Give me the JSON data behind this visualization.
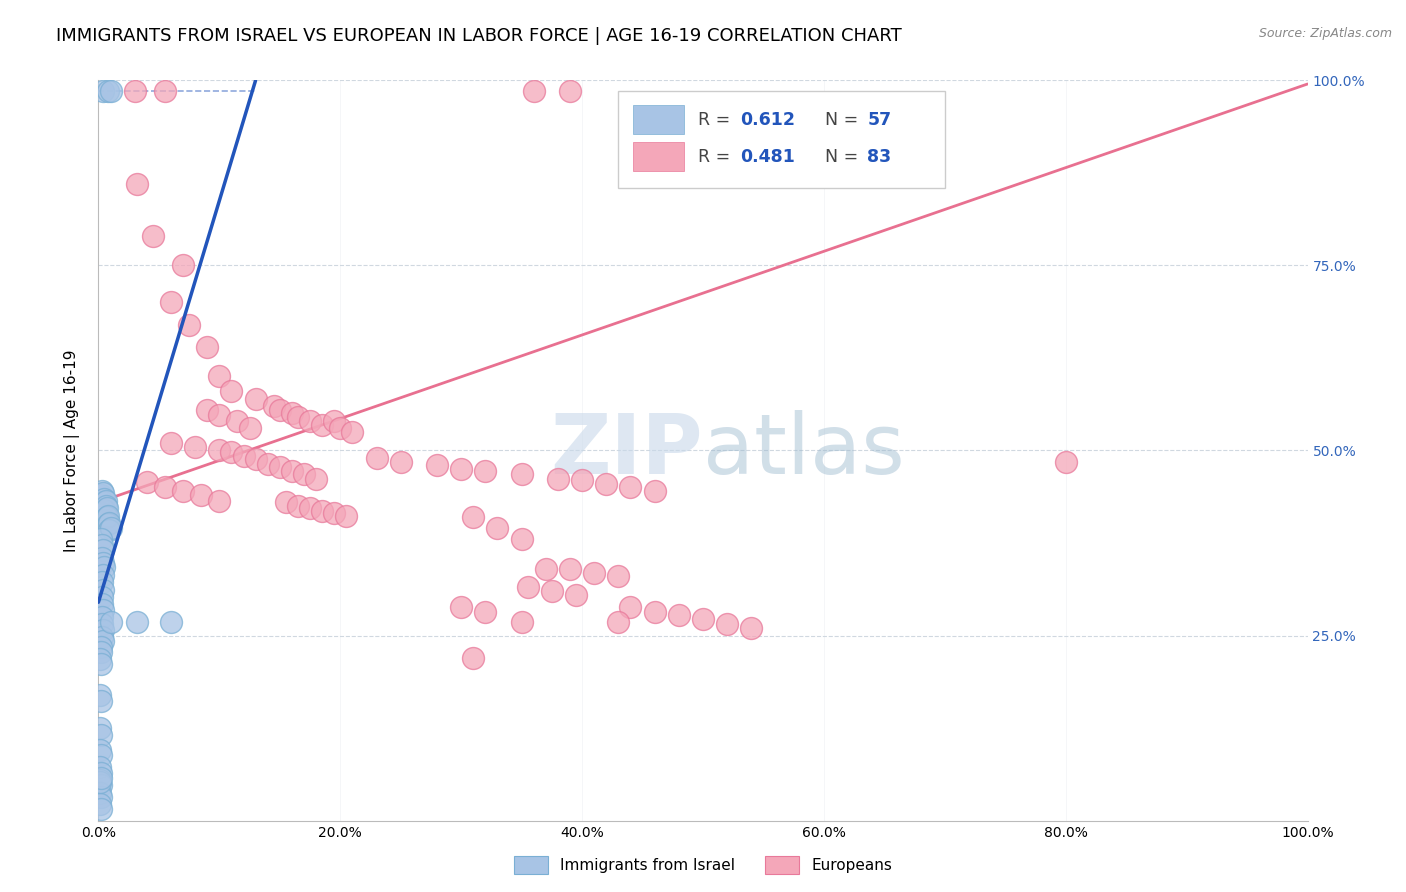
{
  "title": "IMMIGRANTS FROM ISRAEL VS EUROPEAN IN LABOR FORCE | AGE 16-19 CORRELATION CHART",
  "source": "Source: ZipAtlas.com",
  "ylabel": "In Labor Force | Age 16-19",
  "xlim": [
    0.0,
    1.0
  ],
  "ylim": [
    0.0,
    1.0
  ],
  "legend_israel_r": "0.612",
  "legend_israel_n": "57",
  "legend_europe_r": "0.481",
  "legend_europe_n": "83",
  "israel_color": "#a8c4e5",
  "israel_edge_color": "#7aafd4",
  "europe_color": "#f4a7b9",
  "europe_edge_color": "#e8799a",
  "israel_line_color": "#2255bb",
  "europe_line_color": "#e87090",
  "watermark_zip": "ZIP",
  "watermark_atlas": "atlas",
  "watermark_color_zip": "#c5d8ea",
  "watermark_color_atlas": "#9ab8d0",
  "background_color": "#ffffff",
  "grid_color": "#d0d8e0",
  "title_fontsize": 13,
  "label_fontsize": 11,
  "tick_fontsize": 10,
  "israel_scatter": [
    [
      0.004,
      0.985
    ],
    [
      0.008,
      0.986
    ],
    [
      0.01,
      0.985
    ],
    [
      0.002,
      0.44
    ],
    [
      0.003,
      0.445
    ],
    [
      0.004,
      0.442
    ],
    [
      0.004,
      0.43
    ],
    [
      0.005,
      0.435
    ],
    [
      0.006,
      0.432
    ],
    [
      0.005,
      0.42
    ],
    [
      0.006,
      0.425
    ],
    [
      0.007,
      0.422
    ],
    [
      0.007,
      0.41
    ],
    [
      0.008,
      0.412
    ],
    [
      0.008,
      0.4
    ],
    [
      0.009,
      0.402
    ],
    [
      0.009,
      0.392
    ],
    [
      0.01,
      0.395
    ],
    [
      0.002,
      0.38
    ],
    [
      0.003,
      0.372
    ],
    [
      0.004,
      0.365
    ],
    [
      0.003,
      0.355
    ],
    [
      0.004,
      0.348
    ],
    [
      0.005,
      0.342
    ],
    [
      0.004,
      0.332
    ],
    [
      0.003,
      0.322
    ],
    [
      0.004,
      0.312
    ],
    [
      0.003,
      0.302
    ],
    [
      0.003,
      0.292
    ],
    [
      0.004,
      0.285
    ],
    [
      0.003,
      0.275
    ],
    [
      0.003,
      0.265
    ],
    [
      0.004,
      0.258
    ],
    [
      0.003,
      0.248
    ],
    [
      0.004,
      0.242
    ],
    [
      0.002,
      0.235
    ],
    [
      0.002,
      0.228
    ],
    [
      0.001,
      0.218
    ],
    [
      0.002,
      0.212
    ],
    [
      0.001,
      0.17
    ],
    [
      0.002,
      0.162
    ],
    [
      0.001,
      0.125
    ],
    [
      0.002,
      0.115
    ],
    [
      0.001,
      0.095
    ],
    [
      0.002,
      0.088
    ],
    [
      0.001,
      0.072
    ],
    [
      0.002,
      0.065
    ],
    [
      0.001,
      0.055
    ],
    [
      0.002,
      0.048
    ],
    [
      0.001,
      0.038
    ],
    [
      0.002,
      0.032
    ],
    [
      0.001,
      0.022
    ],
    [
      0.002,
      0.016
    ],
    [
      0.001,
      0.052
    ],
    [
      0.002,
      0.058
    ],
    [
      0.01,
      0.268
    ],
    [
      0.032,
      0.268
    ],
    [
      0.06,
      0.268
    ]
  ],
  "europe_scatter": [
    [
      0.03,
      0.985
    ],
    [
      0.055,
      0.985
    ],
    [
      0.36,
      0.985
    ],
    [
      0.39,
      0.985
    ],
    [
      0.032,
      0.86
    ],
    [
      0.045,
      0.79
    ],
    [
      0.07,
      0.75
    ],
    [
      0.06,
      0.7
    ],
    [
      0.075,
      0.67
    ],
    [
      0.09,
      0.64
    ],
    [
      0.1,
      0.6
    ],
    [
      0.11,
      0.58
    ],
    [
      0.09,
      0.555
    ],
    [
      0.1,
      0.548
    ],
    [
      0.115,
      0.54
    ],
    [
      0.125,
      0.53
    ],
    [
      0.13,
      0.57
    ],
    [
      0.145,
      0.56
    ],
    [
      0.15,
      0.555
    ],
    [
      0.16,
      0.55
    ],
    [
      0.165,
      0.545
    ],
    [
      0.175,
      0.54
    ],
    [
      0.185,
      0.535
    ],
    [
      0.195,
      0.54
    ],
    [
      0.2,
      0.53
    ],
    [
      0.21,
      0.525
    ],
    [
      0.06,
      0.51
    ],
    [
      0.08,
      0.505
    ],
    [
      0.1,
      0.5
    ],
    [
      0.11,
      0.498
    ],
    [
      0.12,
      0.492
    ],
    [
      0.13,
      0.488
    ],
    [
      0.14,
      0.482
    ],
    [
      0.15,
      0.478
    ],
    [
      0.16,
      0.472
    ],
    [
      0.17,
      0.468
    ],
    [
      0.18,
      0.462
    ],
    [
      0.04,
      0.458
    ],
    [
      0.055,
      0.45
    ],
    [
      0.07,
      0.445
    ],
    [
      0.085,
      0.44
    ],
    [
      0.1,
      0.432
    ],
    [
      0.23,
      0.49
    ],
    [
      0.25,
      0.485
    ],
    [
      0.28,
      0.48
    ],
    [
      0.3,
      0.475
    ],
    [
      0.32,
      0.472
    ],
    [
      0.35,
      0.468
    ],
    [
      0.38,
      0.462
    ],
    [
      0.4,
      0.46
    ],
    [
      0.42,
      0.455
    ],
    [
      0.44,
      0.45
    ],
    [
      0.46,
      0.445
    ],
    [
      0.155,
      0.43
    ],
    [
      0.165,
      0.425
    ],
    [
      0.175,
      0.422
    ],
    [
      0.185,
      0.418
    ],
    [
      0.195,
      0.415
    ],
    [
      0.205,
      0.412
    ],
    [
      0.31,
      0.41
    ],
    [
      0.33,
      0.395
    ],
    [
      0.35,
      0.38
    ],
    [
      0.37,
      0.34
    ],
    [
      0.39,
      0.34
    ],
    [
      0.41,
      0.335
    ],
    [
      0.43,
      0.33
    ],
    [
      0.355,
      0.315
    ],
    [
      0.375,
      0.31
    ],
    [
      0.395,
      0.305
    ],
    [
      0.3,
      0.288
    ],
    [
      0.32,
      0.282
    ],
    [
      0.44,
      0.288
    ],
    [
      0.46,
      0.282
    ],
    [
      0.48,
      0.278
    ],
    [
      0.5,
      0.272
    ],
    [
      0.35,
      0.268
    ],
    [
      0.43,
      0.268
    ],
    [
      0.52,
      0.265
    ],
    [
      0.54,
      0.26
    ],
    [
      0.8,
      0.485
    ],
    [
      0.31,
      0.22
    ]
  ],
  "israel_line": [
    [
      0.0,
      0.295
    ],
    [
      0.13,
      1.0
    ]
  ],
  "israel_dash_line": [
    [
      0.0,
      0.985
    ],
    [
      0.13,
      0.985
    ]
  ],
  "europe_line": [
    [
      0.0,
      0.43
    ],
    [
      1.0,
      0.995
    ]
  ]
}
